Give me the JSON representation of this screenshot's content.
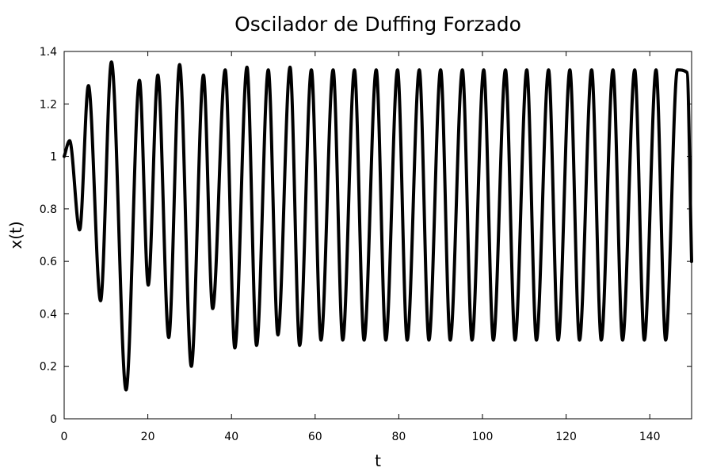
{
  "chart_data": {
    "type": "line",
    "title": "Oscilador de Duffing Forzado",
    "xlabel": "t",
    "ylabel": "x(t)",
    "xlim": [
      0,
      150
    ],
    "ylim": [
      0,
      1.4
    ],
    "x_ticks": [
      0,
      20,
      40,
      60,
      80,
      100,
      120,
      140
    ],
    "y_ticks": [
      0,
      0.2,
      0.4,
      0.6,
      0.8,
      1,
      1.2,
      1.4
    ],
    "x_tick_labels": [
      "0",
      "20",
      "40",
      "60",
      "80",
      "100",
      "120",
      "140"
    ],
    "y_tick_labels": [
      "0",
      "0.2",
      "0.4",
      "0.6",
      "0.8",
      "1",
      "1.2",
      "1.4"
    ],
    "grid": false,
    "legend": "none",
    "line_color": "#000000",
    "series": [
      {
        "x": [
          0,
          1.3,
          3.7,
          5.8,
          8.7,
          11.3,
          14.8,
          18,
          20.1,
          22.4,
          25,
          27.6,
          30.4,
          33.3,
          35.5,
          38.5,
          40.8,
          43.7,
          46,
          48.8,
          51.1,
          54,
          56.3,
          59.1,
          61.4,
          64.3,
          66.6,
          69.4,
          71.7,
          74.6,
          76.9,
          79.7,
          82,
          84.9,
          87.2,
          90,
          92.3,
          95.2,
          97.5,
          100.3,
          102.6,
          105.5,
          107.8,
          110.6,
          112.9,
          115.8,
          118.1,
          120.9,
          123.2,
          126.1,
          128.4,
          131.2,
          133.5,
          136.4,
          138.7,
          141.5,
          143.8,
          146.6,
          148.9,
          150
        ],
        "y": [
          1.0,
          1.06,
          0.72,
          1.27,
          0.45,
          1.36,
          0.11,
          1.29,
          0.51,
          1.31,
          0.31,
          1.35,
          0.2,
          1.31,
          0.42,
          1.33,
          0.27,
          1.34,
          0.28,
          1.33,
          0.32,
          1.34,
          0.28,
          1.33,
          0.3,
          1.33,
          0.3,
          1.33,
          0.3,
          1.33,
          0.3,
          1.33,
          0.3,
          1.33,
          0.3,
          1.33,
          0.3,
          1.33,
          0.3,
          1.33,
          0.3,
          1.33,
          0.3,
          1.33,
          0.3,
          1.33,
          0.3,
          1.33,
          0.3,
          1.33,
          0.3,
          1.33,
          0.3,
          1.33,
          0.3,
          1.33,
          0.3,
          1.33,
          1.32,
          0.6
        ]
      }
    ]
  }
}
